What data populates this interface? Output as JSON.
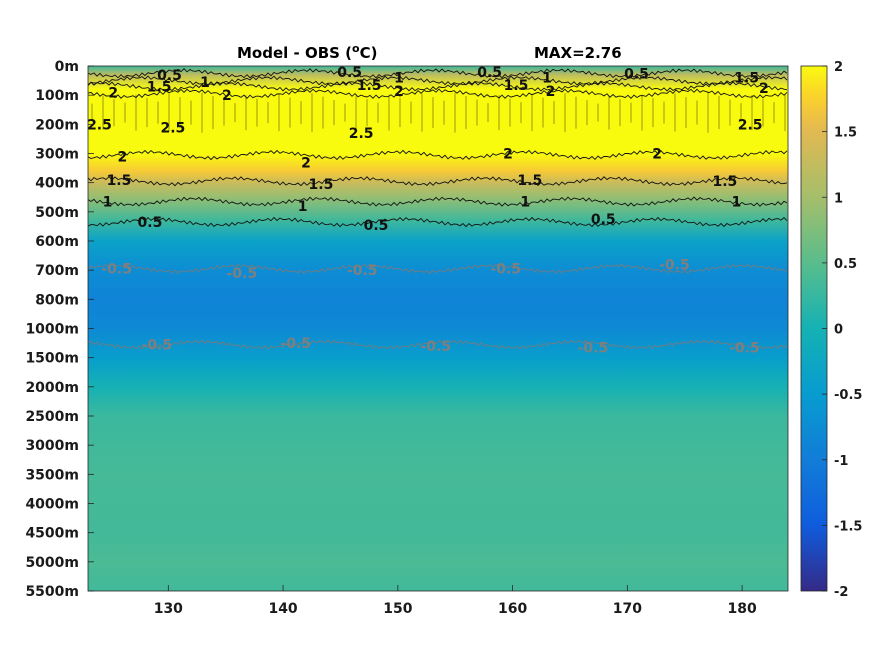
{
  "chart_data": {
    "type": "heatmap",
    "title_left": "Model - OBS (",
    "title_unit_sup": "o",
    "title_unit_tail": "C)",
    "title_right": "MAX=2.76",
    "colormap": "parula",
    "clim": [
      -2,
      2
    ],
    "xlim": [
      123,
      184
    ],
    "x_ticks": [
      130,
      140,
      150,
      160,
      170,
      180
    ],
    "x_tick_labels": [
      "130",
      "140",
      "150",
      "160",
      "170",
      "180"
    ],
    "y_tick_labels": [
      "0m",
      "100m",
      "200m",
      "300m",
      "400m",
      "500m",
      "600m",
      "700m",
      "800m",
      "1000m",
      "1500m",
      "2000m",
      "2500m",
      "3000m",
      "3500m",
      "4000m",
      "4500m",
      "5000m",
      "5500m"
    ],
    "colorbar_ticks": [
      2,
      1.5,
      1,
      0.5,
      0,
      -0.5,
      -1,
      -1.5,
      -2
    ],
    "colorbar_tick_labels": [
      "2",
      "1.5",
      "1",
      "0.5",
      "0",
      "-0.5",
      "-1",
      "-1.5",
      "-2"
    ],
    "depth_profile": [
      {
        "level": 0.0,
        "value": 0.3
      },
      {
        "level": 0.3,
        "value": 1.2
      },
      {
        "level": 0.8,
        "value": 2.3
      },
      {
        "level": 1.3,
        "value": 2.6
      },
      {
        "level": 2.0,
        "value": 2.7
      },
      {
        "level": 3.0,
        "value": 2.1
      },
      {
        "level": 3.6,
        "value": 1.7
      },
      {
        "level": 4.0,
        "value": 1.3
      },
      {
        "level": 4.5,
        "value": 0.9
      },
      {
        "level": 5.3,
        "value": 0.3
      },
      {
        "level": 6.0,
        "value": -0.35
      },
      {
        "level": 7.0,
        "value": -0.75
      },
      {
        "level": 8.0,
        "value": -0.9
      },
      {
        "level": 9.0,
        "value": -0.8
      },
      {
        "level": 10.0,
        "value": -0.45
      },
      {
        "level": 11.0,
        "value": 0.0
      },
      {
        "level": 12.0,
        "value": 0.28
      },
      {
        "level": 14.0,
        "value": 0.36
      },
      {
        "level": 16.0,
        "value": 0.34
      },
      {
        "level": 17.0,
        "value": 0.4
      },
      {
        "level": 18.0,
        "value": 0.32
      }
    ],
    "contour_labels": [
      {
        "text": "0.5",
        "x": 130.1,
        "level": 0.3,
        "color": "black"
      },
      {
        "text": "1",
        "x": 133.2,
        "level": 0.55,
        "color": "black"
      },
      {
        "text": "1.5",
        "x": 129.2,
        "level": 0.7,
        "color": "black"
      },
      {
        "text": "2",
        "x": 125.2,
        "level": 0.9,
        "color": "black"
      },
      {
        "text": "2",
        "x": 135.1,
        "level": 1.0,
        "color": "black"
      },
      {
        "text": "2.5",
        "x": 124.0,
        "level": 2.0,
        "color": "black"
      },
      {
        "text": "2.5",
        "x": 130.4,
        "level": 2.1,
        "color": "black"
      },
      {
        "text": "0.5",
        "x": 145.8,
        "level": 0.2,
        "color": "black"
      },
      {
        "text": "1.5",
        "x": 147.5,
        "level": 0.65,
        "color": "black"
      },
      {
        "text": "1",
        "x": 150.1,
        "level": 0.4,
        "color": "black"
      },
      {
        "text": "2",
        "x": 150.1,
        "level": 0.85,
        "color": "black"
      },
      {
        "text": "2.5",
        "x": 146.8,
        "level": 2.3,
        "color": "black"
      },
      {
        "text": "0.5",
        "x": 158.0,
        "level": 0.2,
        "color": "black"
      },
      {
        "text": "1.5",
        "x": 160.3,
        "level": 0.65,
        "color": "black"
      },
      {
        "text": "1",
        "x": 163.0,
        "level": 0.4,
        "color": "black"
      },
      {
        "text": "2",
        "x": 163.3,
        "level": 0.85,
        "color": "black"
      },
      {
        "text": "0.5",
        "x": 170.8,
        "level": 0.25,
        "color": "black"
      },
      {
        "text": "1.5",
        "x": 180.4,
        "level": 0.4,
        "color": "black"
      },
      {
        "text": "2",
        "x": 181.9,
        "level": 0.75,
        "color": "black"
      },
      {
        "text": "2.5",
        "x": 180.7,
        "level": 2.0,
        "color": "black"
      },
      {
        "text": "2",
        "x": 126.0,
        "level": 3.1,
        "color": "black"
      },
      {
        "text": "2",
        "x": 142.0,
        "level": 3.3,
        "color": "black"
      },
      {
        "text": "2",
        "x": 159.6,
        "level": 3.0,
        "color": "black"
      },
      {
        "text": "2",
        "x": 172.6,
        "level": 3.0,
        "color": "black"
      },
      {
        "text": "1.5",
        "x": 125.7,
        "level": 3.9,
        "color": "black"
      },
      {
        "text": "1.5",
        "x": 143.3,
        "level": 4.05,
        "color": "black"
      },
      {
        "text": "1.5",
        "x": 161.5,
        "level": 3.9,
        "color": "black"
      },
      {
        "text": "1.5",
        "x": 178.5,
        "level": 3.95,
        "color": "black"
      },
      {
        "text": "1",
        "x": 124.7,
        "level": 4.65,
        "color": "black"
      },
      {
        "text": "1",
        "x": 141.7,
        "level": 4.8,
        "color": "black"
      },
      {
        "text": "1",
        "x": 161.1,
        "level": 4.65,
        "color": "black"
      },
      {
        "text": "1",
        "x": 179.5,
        "level": 4.65,
        "color": "black"
      },
      {
        "text": "0.5",
        "x": 128.4,
        "level": 5.35,
        "color": "black"
      },
      {
        "text": "0.5",
        "x": 148.1,
        "level": 5.45,
        "color": "black"
      },
      {
        "text": "0.5",
        "x": 167.9,
        "level": 5.25,
        "color": "black"
      },
      {
        "text": "-0.5",
        "x": 125.5,
        "level": 6.95,
        "color": "gray"
      },
      {
        "text": "-0.5",
        "x": 136.4,
        "level": 7.1,
        "color": "gray"
      },
      {
        "text": "-0.5",
        "x": 146.9,
        "level": 7.0,
        "color": "gray"
      },
      {
        "text": "-0.5",
        "x": 159.4,
        "level": 6.95,
        "color": "gray"
      },
      {
        "text": "-0.5",
        "x": 174.1,
        "level": 6.8,
        "color": "gray"
      },
      {
        "text": "-0.5",
        "x": 129.0,
        "level": 9.55,
        "color": "gray"
      },
      {
        "text": "-0.5",
        "x": 141.1,
        "level": 9.5,
        "color": "gray"
      },
      {
        "text": "-0.5",
        "x": 153.3,
        "level": 9.6,
        "color": "gray"
      },
      {
        "text": "-0.5",
        "x": 167.0,
        "level": 9.65,
        "color": "gray"
      },
      {
        "text": "-0.5",
        "x": 180.2,
        "level": 9.65,
        "color": "gray"
      }
    ],
    "contour_lines": [
      {
        "value": 0.5,
        "level": 0.25,
        "color": "black"
      },
      {
        "value": 1,
        "level": 0.5,
        "color": "black"
      },
      {
        "value": 1.5,
        "level": 0.7,
        "color": "black"
      },
      {
        "value": 2,
        "level": 0.95,
        "color": "black"
      },
      {
        "value": 2,
        "level": 3.05,
        "color": "black"
      },
      {
        "value": 1.5,
        "level": 3.95,
        "color": "black"
      },
      {
        "value": 1,
        "level": 4.65,
        "color": "black"
      },
      {
        "value": 0.5,
        "level": 5.35,
        "color": "black"
      },
      {
        "value": -0.5,
        "level": 6.95,
        "color": "gray"
      },
      {
        "value": -0.5,
        "level": 9.55,
        "color": "gray"
      }
    ]
  }
}
